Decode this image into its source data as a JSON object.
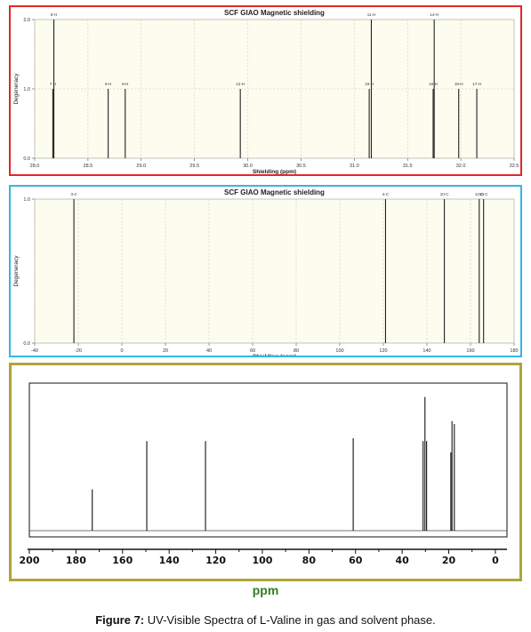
{
  "chart_data": [
    {
      "type": "bar",
      "title": "SCF GIAO Magnetic shielding",
      "xlabel": "Shielding (ppm)",
      "ylabel": "Degeneracy",
      "xlim": [
        28.0,
        32.5
      ],
      "ylim": [
        0.0,
        2.0
      ],
      "x_reversed": false,
      "grid": true,
      "xticks": [
        28.0,
        28.5,
        29.0,
        29.5,
        30.0,
        30.5,
        31.0,
        31.5,
        32.0,
        32.5
      ],
      "xtick_labels": [
        "28.0",
        "28.5",
        "29.0",
        "29.5",
        "30.0",
        "30.5",
        "31.0",
        "31.5",
        "32.0",
        "32.5"
      ],
      "yticks": [
        0.0,
        1.0,
        2.0
      ],
      "ytick_labels": [
        "0.0",
        "1.0",
        "2.0"
      ],
      "peaks": [
        {
          "x": 28.18,
          "y": 2.0,
          "label": "8-H"
        },
        {
          "x": 28.17,
          "y": 1.0,
          "label": "7-H"
        },
        {
          "x": 28.69,
          "y": 1.0,
          "label": "9-H"
        },
        {
          "x": 28.85,
          "y": 1.0,
          "label": "6-H"
        },
        {
          "x": 29.93,
          "y": 1.0,
          "label": "12-H"
        },
        {
          "x": 31.16,
          "y": 2.0,
          "label": "11-H"
        },
        {
          "x": 31.14,
          "y": 1.0,
          "label": "15-H"
        },
        {
          "x": 31.75,
          "y": 2.0,
          "label": "14-H"
        },
        {
          "x": 31.74,
          "y": 1.0,
          "label": "16-H"
        },
        {
          "x": 31.98,
          "y": 1.0,
          "label": "18-H"
        },
        {
          "x": 32.15,
          "y": 1.0,
          "label": "17-H"
        }
      ]
    },
    {
      "type": "bar",
      "title": "SCF GIAO Magnetic shielding",
      "xlabel": "Shielding (ppm)",
      "ylabel": "Degeneracy",
      "xlim": [
        -40,
        180
      ],
      "ylim": [
        0.0,
        1.0
      ],
      "x_reversed": false,
      "grid": true,
      "xticks": [
        -40,
        -20,
        0,
        20,
        40,
        60,
        80,
        100,
        120,
        140,
        160,
        180
      ],
      "xtick_labels": [
        "-40",
        "-20",
        "0",
        "20",
        "40",
        "60",
        "80",
        "100",
        "120",
        "140",
        "160",
        "180"
      ],
      "yticks": [
        0.0,
        1.0
      ],
      "ytick_labels": [
        "0.0",
        "1.0"
      ],
      "peaks": [
        {
          "x": -22,
          "y": 1.0,
          "label": "3-C"
        },
        {
          "x": 121,
          "y": 1.0,
          "label": "4-C"
        },
        {
          "x": 148,
          "y": 1.0,
          "label": "10-C"
        },
        {
          "x": 164,
          "y": 1.0,
          "label": "12-C"
        },
        {
          "x": 166,
          "y": 1.0,
          "label": "13-C"
        }
      ]
    },
    {
      "type": "bar",
      "title": "",
      "xlabel": "ppm",
      "ylabel": "",
      "xlim": [
        200,
        -5
      ],
      "ylim": [
        0,
        1.0
      ],
      "x_reversed": true,
      "grid": false,
      "xticks": [
        200,
        180,
        160,
        140,
        120,
        100,
        80,
        60,
        40,
        20,
        0
      ],
      "xtick_labels": [
        "200",
        "180",
        "160",
        "140",
        "120",
        "100",
        "80",
        "60",
        "40",
        "20",
        "0"
      ],
      "peaks": [
        {
          "x": 173.0,
          "y": 0.29
        },
        {
          "x": 149.6,
          "y": 0.63
        },
        {
          "x": 124.4,
          "y": 0.63
        },
        {
          "x": 61.0,
          "y": 0.65
        },
        {
          "x": 31.0,
          "y": 0.63
        },
        {
          "x": 30.2,
          "y": 0.94
        },
        {
          "x": 29.5,
          "y": 0.63
        },
        {
          "x": 19.1,
          "y": 0.55
        },
        {
          "x": 18.6,
          "y": 0.77
        },
        {
          "x": 17.6,
          "y": 0.75
        }
      ]
    }
  ],
  "caption": {
    "label": "Figure 7:",
    "text": " UV-Visible Spectra of L-Valine in gas and solvent phase."
  },
  "colors": {
    "panel1_border": "#e02828",
    "panel2_border": "#33b7e0",
    "panel3_border": "#b0a43a",
    "plot_bg": "#fcfcef",
    "unit_label": "#2e7d1e"
  }
}
